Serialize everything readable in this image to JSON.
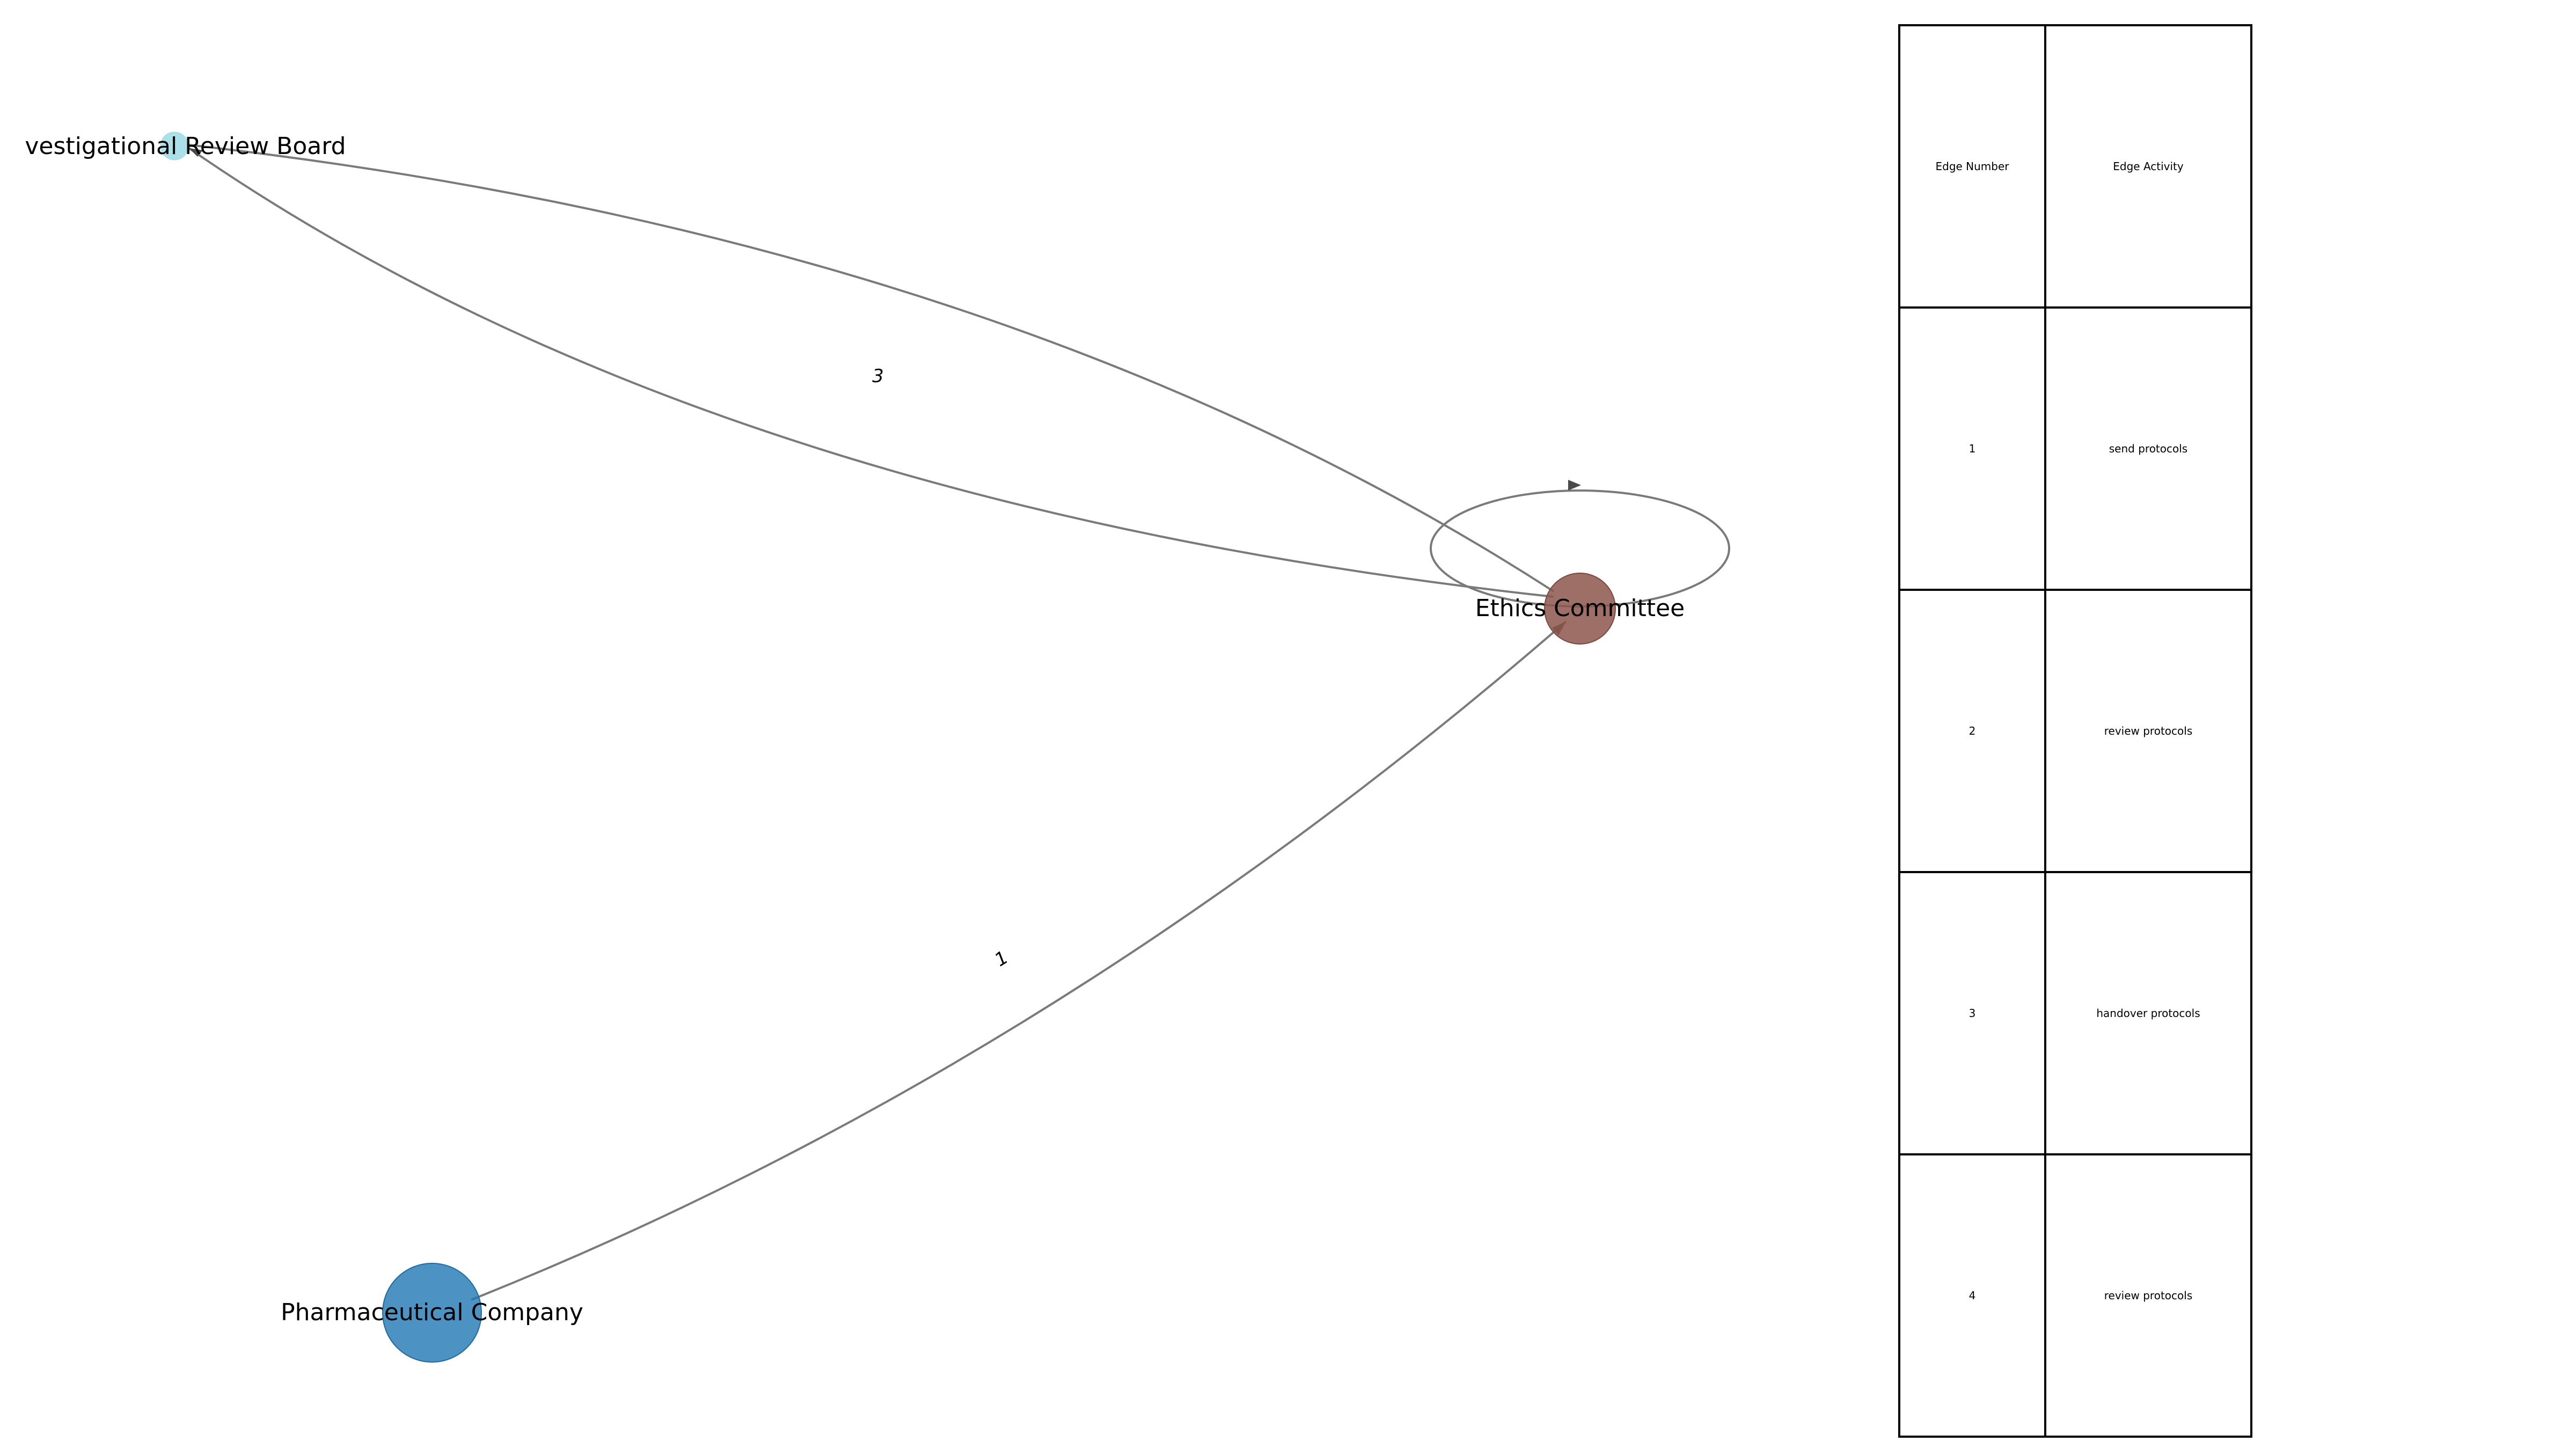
{
  "nodes": [
    {
      "id": "irb",
      "label": "Investigational Review Board",
      "color": "#9edae5"
    },
    {
      "id": "ethics",
      "label": "Ethics Committee",
      "color": "#8c564b"
    },
    {
      "id": "pharma",
      "label": "Pharmaceutical Company",
      "color": "#1f77b4"
    }
  ],
  "edges": [
    {
      "number": "1",
      "from": "Pharmaceutical Company",
      "to": "Ethics Committee",
      "label": "1"
    },
    {
      "number": "2",
      "from": "Ethics Committee",
      "to": "Ethics Committee",
      "label": ""
    },
    {
      "number": "3",
      "from": "Ethics Committee",
      "to": "Investigational Review Board",
      "label": "3"
    },
    {
      "number": "4",
      "from": "Investigational Review Board",
      "to": "Ethics Committee",
      "label": ""
    }
  ],
  "table": {
    "headers": [
      "Edge Number",
      "Edge Activity"
    ],
    "rows": [
      [
        "1",
        "send protocols"
      ],
      [
        "2",
        "review protocols"
      ],
      [
        "3",
        "handover protocols"
      ],
      [
        "4",
        "review protocols"
      ]
    ]
  }
}
